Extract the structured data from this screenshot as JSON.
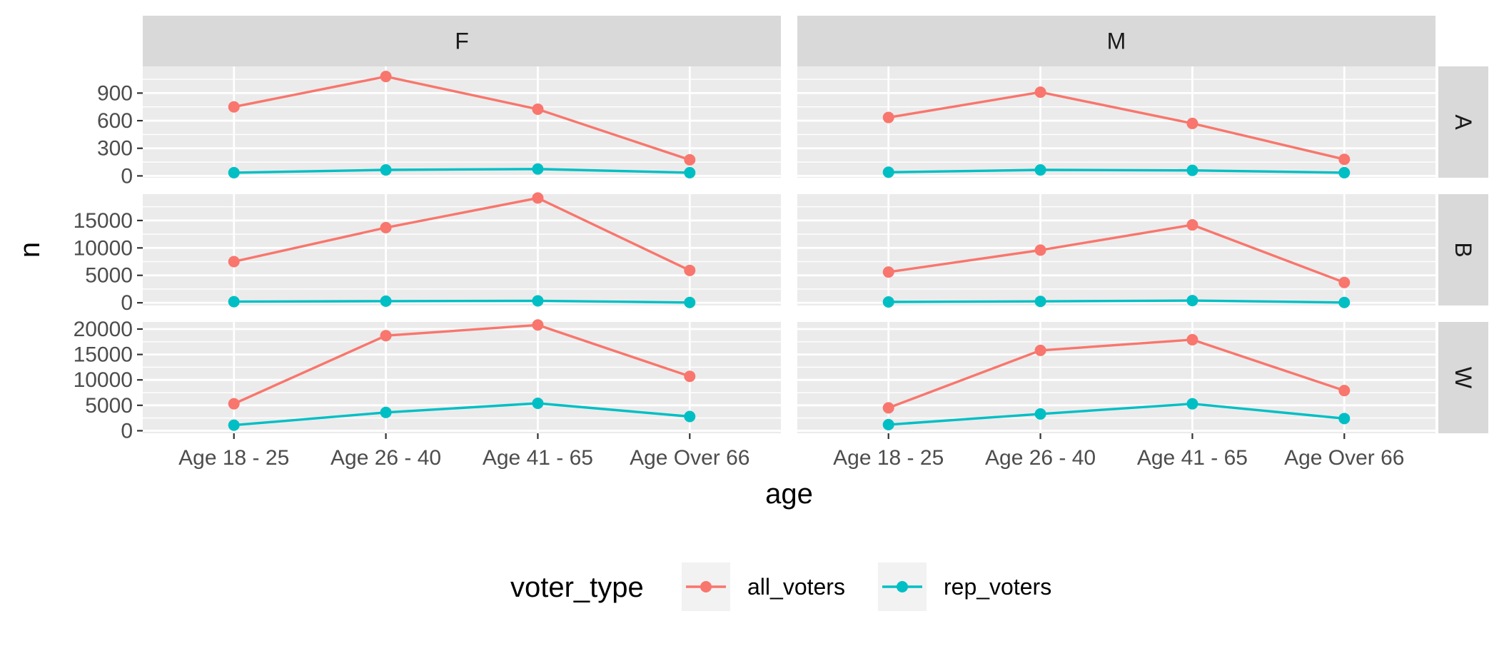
{
  "chart_data": {
    "type": "line",
    "facet_columns": [
      "F",
      "M"
    ],
    "facet_rows": [
      "A",
      "B",
      "W"
    ],
    "categories": [
      "Age 18 - 25",
      "Age 26 - 40",
      "Age 41 - 65",
      "Age Over 66"
    ],
    "xlabel": "age",
    "ylabel": "n",
    "legend": {
      "title": "voter_type",
      "position": "bottom",
      "entries": [
        {
          "name": "all_voters",
          "color": "#F8766D"
        },
        {
          "name": "rep_voters",
          "color": "#00BFC4"
        }
      ]
    },
    "row_axes": {
      "A": {
        "ylim": [
          -20,
          1190
        ],
        "ticks": [
          0,
          300,
          600,
          900
        ],
        "tick_labels": [
          "0",
          "300",
          "600",
          "900"
        ]
      },
      "B": {
        "ylim": [
          -500,
          19800
        ],
        "ticks": [
          0,
          5000,
          10000,
          15000
        ],
        "tick_labels": [
          "0",
          "5000",
          "10000",
          "15000"
        ]
      },
      "W": {
        "ylim": [
          -500,
          21400
        ],
        "ticks": [
          0,
          5000,
          10000,
          15000,
          20000
        ],
        "tick_labels": [
          "0",
          "5000",
          "10000",
          "15000",
          "20000"
        ]
      }
    },
    "panels": [
      {
        "col": "F",
        "row": "A",
        "series": [
          {
            "name": "all_voters",
            "values": [
              750,
              1080,
              725,
              175
            ]
          },
          {
            "name": "rep_voters",
            "values": [
              35,
              65,
              75,
              35
            ]
          }
        ]
      },
      {
        "col": "M",
        "row": "A",
        "series": [
          {
            "name": "all_voters",
            "values": [
              635,
              910,
              570,
              180
            ]
          },
          {
            "name": "rep_voters",
            "values": [
              40,
              65,
              60,
              35
            ]
          }
        ]
      },
      {
        "col": "F",
        "row": "B",
        "series": [
          {
            "name": "all_voters",
            "values": [
              7500,
              13700,
              19100,
              5900
            ]
          },
          {
            "name": "rep_voters",
            "values": [
              200,
              300,
              350,
              50
            ]
          }
        ]
      },
      {
        "col": "M",
        "row": "B",
        "series": [
          {
            "name": "all_voters",
            "values": [
              5600,
              9600,
              14200,
              3700
            ]
          },
          {
            "name": "rep_voters",
            "values": [
              150,
              250,
              400,
              50
            ]
          }
        ]
      },
      {
        "col": "F",
        "row": "W",
        "series": [
          {
            "name": "all_voters",
            "values": [
              5300,
              18700,
              20800,
              10700
            ]
          },
          {
            "name": "rep_voters",
            "values": [
              1100,
              3600,
              5400,
              2800
            ]
          }
        ]
      },
      {
        "col": "M",
        "row": "W",
        "series": [
          {
            "name": "all_voters",
            "values": [
              4500,
              15800,
              17900,
              7900
            ]
          },
          {
            "name": "rep_voters",
            "values": [
              1200,
              3300,
              5300,
              2400
            ]
          }
        ]
      }
    ],
    "grid": true
  }
}
